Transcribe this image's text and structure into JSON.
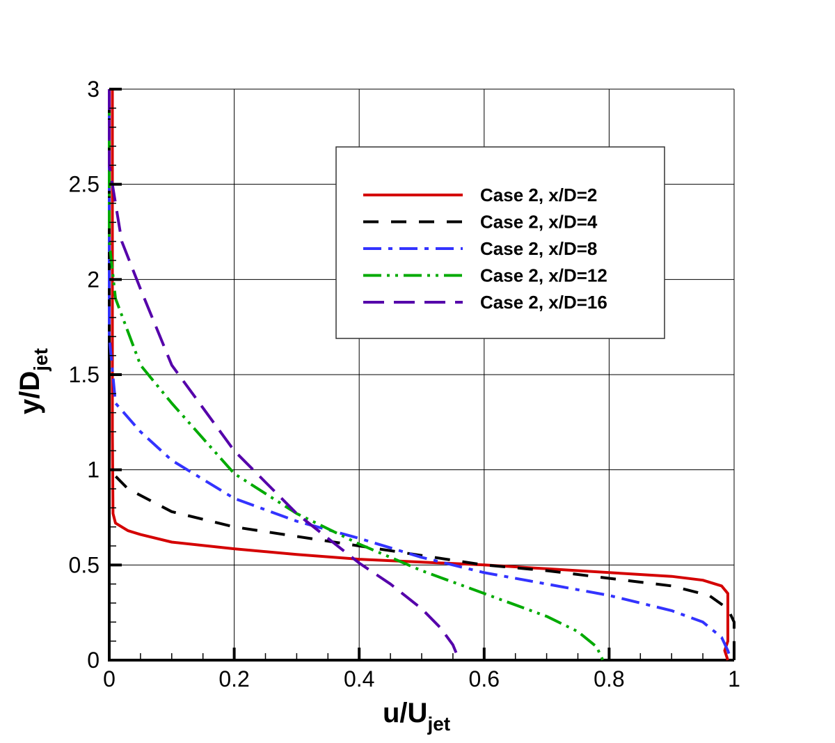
{
  "chart_data": {
    "type": "line",
    "title": "",
    "xlabel": "u/U_jet",
    "xlabel_main": "u/U",
    "xlabel_sub": "jet",
    "ylabel": "y/D_jet",
    "ylabel_main": "y/D",
    "ylabel_sub": "jet",
    "xlim": [
      0,
      1
    ],
    "ylim": [
      0,
      3
    ],
    "xticks": [
      "0",
      "0.2",
      "0.4",
      "0.6",
      "0.8",
      "1"
    ],
    "yticks": [
      "0",
      "0.5",
      "1",
      "1.5",
      "2",
      "2.5",
      "3"
    ],
    "grid": true,
    "legend_position": "upper right (inside plot)",
    "series": [
      {
        "name": "Case 2, x/D=2",
        "color": "#d40000",
        "style": "solid",
        "x": [
          0.005,
          0.005,
          0.006,
          0.01,
          0.03,
          0.05,
          0.1,
          0.2,
          0.3,
          0.4,
          0.5,
          0.6,
          0.7,
          0.8,
          0.9,
          0.95,
          0.98,
          0.99,
          0.99,
          0.985,
          0.99
        ],
        "y": [
          3.0,
          1.2,
          0.77,
          0.72,
          0.68,
          0.66,
          0.62,
          0.585,
          0.555,
          0.53,
          0.515,
          0.5,
          0.48,
          0.46,
          0.44,
          0.42,
          0.39,
          0.35,
          0.1,
          0.05,
          0.0
        ]
      },
      {
        "name": "Case 2, x/D=4",
        "color": "#000000",
        "style": "dashed",
        "x": [
          0.0,
          0.0,
          0.03,
          0.1,
          0.2,
          0.3,
          0.4,
          0.5,
          0.6,
          0.7,
          0.8,
          0.9,
          0.96,
          0.99,
          1.0,
          1.0
        ],
        "y": [
          3.0,
          1.0,
          0.9,
          0.78,
          0.7,
          0.65,
          0.6,
          0.55,
          0.5,
          0.47,
          0.43,
          0.39,
          0.34,
          0.27,
          0.2,
          0.0
        ]
      },
      {
        "name": "Case 2, x/D=8",
        "color": "#3333ff",
        "style": "dash-dot",
        "x": [
          0.0,
          0.0,
          0.01,
          0.05,
          0.1,
          0.2,
          0.3,
          0.4,
          0.5,
          0.6,
          0.7,
          0.8,
          0.9,
          0.95,
          0.98,
          0.99,
          0.995
        ],
        "y": [
          3.0,
          1.7,
          1.35,
          1.2,
          1.05,
          0.85,
          0.73,
          0.64,
          0.54,
          0.46,
          0.4,
          0.34,
          0.26,
          0.2,
          0.12,
          0.05,
          0.0
        ]
      },
      {
        "name": "Case 2, x/D=12",
        "color": "#00aa00",
        "style": "dash-dot-dot",
        "x": [
          0.0,
          0.0,
          0.01,
          0.05,
          0.1,
          0.2,
          0.3,
          0.4,
          0.5,
          0.6,
          0.7,
          0.75,
          0.78,
          0.79
        ],
        "y": [
          3.0,
          2.2,
          1.9,
          1.55,
          1.35,
          0.98,
          0.77,
          0.61,
          0.47,
          0.35,
          0.23,
          0.15,
          0.07,
          0.0
        ]
      },
      {
        "name": "Case 2, x/D=16",
        "color": "#5500aa",
        "style": "long-dash",
        "x": [
          0.0,
          0.0,
          0.02,
          0.05,
          0.1,
          0.2,
          0.3,
          0.4,
          0.45,
          0.5,
          0.53,
          0.55,
          0.56
        ],
        "y": [
          3.0,
          2.6,
          2.2,
          1.95,
          1.55,
          1.1,
          0.77,
          0.51,
          0.4,
          0.27,
          0.17,
          0.08,
          0.0
        ]
      }
    ]
  }
}
